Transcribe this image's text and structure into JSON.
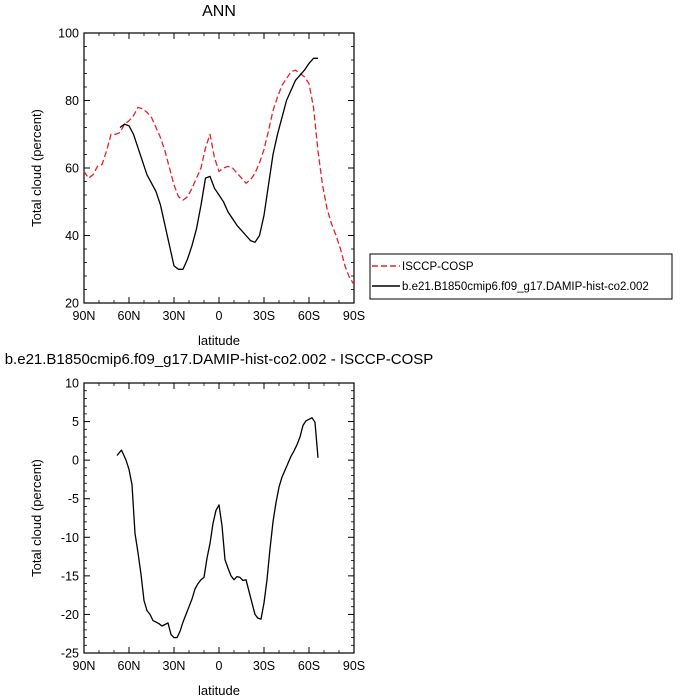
{
  "chart_data": [
    {
      "type": "line",
      "title": "ANN",
      "xlabel": "latitude",
      "ylabel": "Total cloud (percent)",
      "xlim": [
        90,
        -90
      ],
      "ylim": [
        20,
        100
      ],
      "xticks": [
        90,
        60,
        30,
        0,
        -30,
        -60,
        -90
      ],
      "xtick_labels": [
        "90N",
        "60N",
        "30N",
        "0",
        "30S",
        "60S",
        "90S"
      ],
      "yticks": [
        20,
        40,
        60,
        80,
        100
      ],
      "ytick_labels": [
        "20",
        "40",
        "60",
        "80",
        "100"
      ],
      "legend_position": "right",
      "series": [
        {
          "name": "ISCCP-COSP",
          "color": "#e8202a",
          "dash": "dashed",
          "x": [
            90,
            87,
            84,
            81,
            78,
            75,
            72,
            69,
            66,
            63,
            60,
            57,
            54,
            51,
            48,
            45,
            42,
            39,
            36,
            33,
            30,
            27,
            24,
            21,
            18,
            15,
            12,
            9,
            6,
            3,
            0,
            -3,
            -6,
            -9,
            -12,
            -15,
            -18,
            -21,
            -24,
            -27,
            -30,
            -33,
            -36,
            -39,
            -42,
            -45,
            -48,
            -51,
            -54,
            -57,
            -60,
            -63,
            -66,
            -69,
            -72,
            -75,
            -78,
            -81,
            -84,
            -87,
            -90
          ],
          "y": [
            59,
            57,
            58,
            60.5,
            61,
            65,
            70,
            70,
            70.5,
            73,
            74,
            75.5,
            78,
            77.5,
            76.5,
            75,
            72,
            69,
            65,
            60,
            55,
            51.5,
            50.5,
            51.5,
            54,
            57,
            60,
            66,
            70,
            63,
            59,
            60,
            60.5,
            60,
            58.5,
            57,
            55.5,
            56.5,
            58.5,
            61.5,
            65.5,
            71,
            77,
            81,
            84.5,
            86.5,
            88.5,
            89,
            88,
            87,
            85,
            78,
            65,
            55,
            48,
            43.5,
            40,
            36,
            31,
            27.5,
            25.5
          ]
        },
        {
          "name": "b.e21.B1850cmip6.f09_g17.DAMIP-hist-co2.002",
          "color": "#000000",
          "dash": "solid",
          "x": [
            66,
            63,
            60,
            57,
            54,
            51,
            48,
            45,
            42,
            39,
            36,
            33,
            30,
            27,
            24,
            21,
            18,
            15,
            12,
            9,
            6,
            3,
            0,
            -3,
            -6,
            -9,
            -12,
            -15,
            -18,
            -21,
            -24,
            -27,
            -30,
            -33,
            -36,
            -39,
            -42,
            -45,
            -48,
            -51,
            -54,
            -57,
            -60,
            -63,
            -66
          ],
          "y": [
            72,
            73,
            72.5,
            70,
            66,
            62,
            58,
            55.5,
            53,
            49,
            43,
            37,
            31,
            30,
            30,
            33,
            37,
            42,
            49,
            57,
            57.5,
            54,
            52,
            50,
            47,
            45,
            43,
            41.5,
            40,
            38.5,
            38,
            40,
            46,
            55,
            64,
            70,
            75,
            80,
            83,
            86,
            87.5,
            89,
            91,
            92.5,
            92.5
          ]
        }
      ]
    },
    {
      "type": "line",
      "title": "b.e21.B1850cmip6.f09_g17.DAMIP-hist-co2.002 - ISCCP-COSP",
      "xlabel": "latitude",
      "ylabel": "Total cloud (percent)",
      "xlim": [
        90,
        -90
      ],
      "ylim": [
        -25,
        10
      ],
      "xticks": [
        90,
        60,
        30,
        0,
        -30,
        -60,
        -90
      ],
      "xtick_labels": [
        "90N",
        "60N",
        "30N",
        "0",
        "30S",
        "60S",
        "90S"
      ],
      "yticks": [
        -25,
        -20,
        -15,
        -10,
        -5,
        0,
        5,
        10
      ],
      "ytick_labels": [
        "-25",
        "-20",
        "-15",
        "-10",
        "-5",
        "0",
        "5",
        "10"
      ],
      "series": [
        {
          "color": "#000000",
          "dash": "solid",
          "x": [
            68,
            65,
            62,
            60,
            58,
            56,
            54,
            52,
            50,
            48,
            46,
            44,
            42,
            40,
            38,
            36,
            34,
            32,
            30,
            28,
            26,
            24,
            22,
            20,
            18,
            16,
            14,
            12,
            10,
            8,
            6,
            4,
            2,
            0,
            -2,
            -4,
            -6,
            -8,
            -10,
            -12,
            -14,
            -16,
            -18,
            -20,
            -22,
            -24,
            -26,
            -28,
            -30,
            -32,
            -34,
            -36,
            -38,
            -40,
            -42,
            -44,
            -46,
            -48,
            -50,
            -52,
            -54,
            -56,
            -58,
            -60,
            -62,
            -64,
            -66
          ],
          "y": [
            0.6,
            1.3,
            0,
            -1.2,
            -3.2,
            -9.5,
            -12,
            -14.8,
            -18.2,
            -19.5,
            -20,
            -20.8,
            -21,
            -21.2,
            -21.5,
            -21.3,
            -21.1,
            -22.6,
            -23,
            -23,
            -22.2,
            -21,
            -20,
            -19,
            -18,
            -16.7,
            -16,
            -15.5,
            -15.2,
            -12.7,
            -10.8,
            -8.2,
            -6.5,
            -5.8,
            -8.5,
            -12.9,
            -14,
            -15,
            -15.5,
            -15.1,
            -15.2,
            -15.6,
            -15.5,
            -17,
            -18.5,
            -20,
            -20.5,
            -20.6,
            -18.5,
            -15.5,
            -11.5,
            -8,
            -5.5,
            -3.5,
            -2.2,
            -1.3,
            -0.4,
            0.5,
            1.2,
            2,
            3,
            4.5,
            5.1,
            5.3,
            5.5,
            4.9,
            0.3
          ]
        }
      ]
    }
  ]
}
